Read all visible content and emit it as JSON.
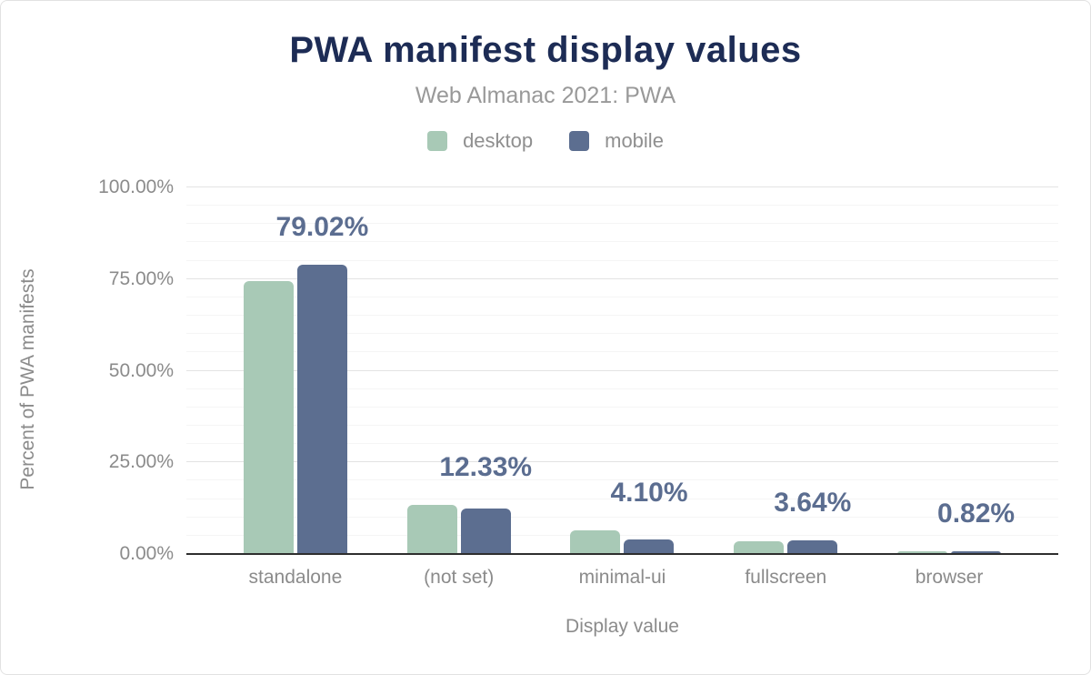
{
  "chart": {
    "title": "PWA manifest display values",
    "subtitle": "Web Almanac 2021: PWA",
    "xlabel": "Display value",
    "ylabel": "Percent of PWA manifests"
  },
  "legend": {
    "items": [
      {
        "label": "desktop",
        "color": "#a8c9b6"
      },
      {
        "label": "mobile",
        "color": "#5c6e90"
      }
    ]
  },
  "colors": {
    "title_text": "#1d2c55",
    "subtitle_text": "#999999",
    "axis_text": "#8b8b8b",
    "value_label_text": "#5b6d90",
    "axis_line": "#2e2e2e",
    "grid_major": "#e3e3e3",
    "grid_minor": "#f5f5f5",
    "desktop_bar": "#a8c9b6",
    "mobile_bar": "#5c6e90",
    "background": "#ffffff"
  },
  "chart_data": {
    "type": "bar",
    "title": "PWA manifest display values",
    "subtitle": "Web Almanac 2021: PWA",
    "categories": [
      "standalone",
      "(not set)",
      "minimal-ui",
      "fullscreen",
      "browser"
    ],
    "series": [
      {
        "name": "desktop",
        "color": "#a8c9b6",
        "values": [
          74.5,
          13.4,
          6.4,
          3.4,
          0.7
        ]
      },
      {
        "name": "mobile",
        "color": "#5c6e90",
        "values": [
          79.02,
          12.33,
          4.1,
          3.64,
          0.82
        ]
      }
    ],
    "data_labels": {
      "on_series": "mobile",
      "values": [
        "79.02%",
        "12.33%",
        "4.10%",
        "3.64%",
        "0.82%"
      ]
    },
    "xlabel": "Display value",
    "ylabel": "Percent of PWA manifests",
    "ylim": [
      0,
      100
    ],
    "yticks": [
      {
        "value": 0,
        "label": "0.00%"
      },
      {
        "value": 25,
        "label": "25.00%"
      },
      {
        "value": 50,
        "label": "50.00%"
      },
      {
        "value": 75,
        "label": "75.00%"
      },
      {
        "value": 100,
        "label": "100.00%"
      }
    ],
    "grid": {
      "minor_step": 5,
      "major_ticks": [
        25,
        50,
        75,
        100
      ]
    },
    "legend_position": "top"
  }
}
